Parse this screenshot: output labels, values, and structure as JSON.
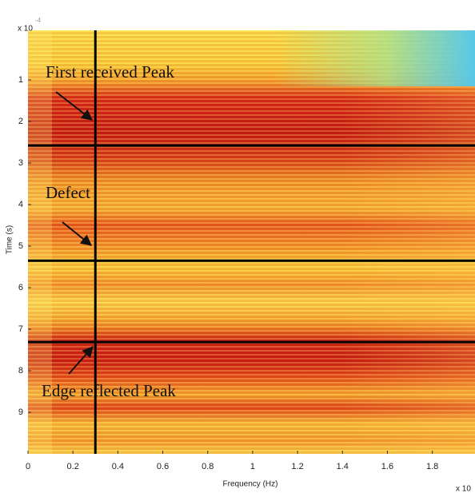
{
  "chart_data": {
    "type": "heatmap",
    "x_label": "Frequency (Hz)",
    "y_label": "Time (s)",
    "y_multiplier": "x 10",
    "y_exponent": "-4",
    "x_multiplier": "x 10",
    "xlim": [
      0,
      1.99
    ],
    "xticks": [
      0,
      0.2,
      0.4,
      0.6,
      0.8,
      1,
      1.2,
      1.4,
      1.6,
      1.8
    ],
    "ylim": [
      0,
      10
    ],
    "yticks": [
      1,
      2,
      3,
      4,
      5,
      6,
      7,
      8,
      9
    ],
    "y_inverted": true,
    "vlines": [
      0.3
    ],
    "hlines": [
      2.58,
      5.35,
      7.31
    ],
    "line_color": "#000000",
    "annotations": [
      "First received Peak",
      "Defect",
      "Edge reflected Peak"
    ]
  }
}
